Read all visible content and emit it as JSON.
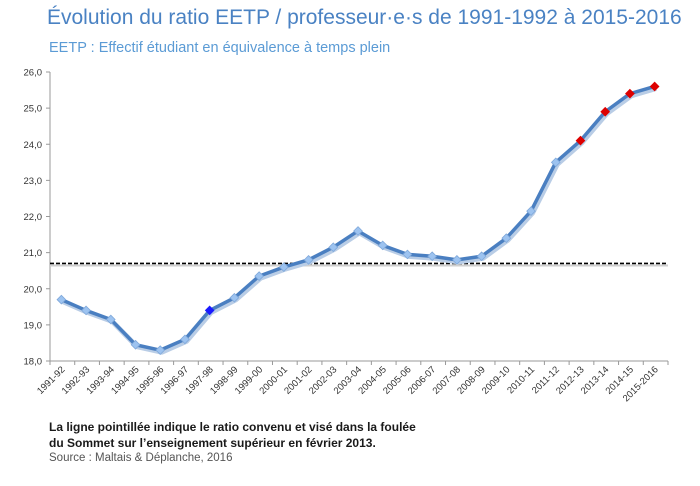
{
  "header": {
    "title": "Évolution du ratio EETP / professeur·e·s de 1991-1992 à 2015-2016",
    "subtitle": "EETP : Effectif étudiant en équivalence à temps plein"
  },
  "footer": {
    "note_line1": "La ligne pointillée indique le ratio convenu et visé dans la foulée",
    "note_line2": "du Sommet sur l’enseignement supérieur en février 2013.",
    "source": "Source : Maltais & Déplanche, 2016"
  },
  "chart_data": {
    "type": "line",
    "title": "Évolution du ratio EETP / professeur·e·s de 1991-1992 à 2015-2016",
    "xlabel": "",
    "ylabel": "",
    "ylim": [
      18.0,
      26.0
    ],
    "y_ticks": [
      "18,0",
      "19,0",
      "20,0",
      "21,0",
      "22,0",
      "23,0",
      "24,0",
      "25,0",
      "26,0"
    ],
    "grid": false,
    "categories": [
      "1991-92",
      "1992-93",
      "1993-94",
      "1994-95",
      "1995-96",
      "1996-97",
      "1997-98",
      "1998-99",
      "1999-00",
      "2000-01",
      "2001-02",
      "2002-03",
      "2003-04",
      "2004-05",
      "2005-06",
      "2006-07",
      "2007-08",
      "2008-09",
      "2009-10",
      "2010-11",
      "2011-12",
      "2012-13",
      "2013-14",
      "2014-15",
      "2015-2016"
    ],
    "series": [
      {
        "values": [
          19.7,
          19.4,
          19.15,
          18.45,
          18.3,
          18.6,
          19.4,
          19.75,
          20.35,
          20.6,
          20.8,
          21.15,
          21.6,
          21.2,
          20.95,
          20.9,
          20.8,
          20.9,
          21.4,
          22.15,
          23.5,
          24.1,
          24.9,
          25.4,
          25.6
        ],
        "line_color": "#4a7fc1",
        "marker_color": "#9dc3f0",
        "highlight_markers": {
          "6": "#1a1aff",
          "21": "#dd0000",
          "22": "#dd0000",
          "23": "#dd0000",
          "24": "#dd0000"
        }
      }
    ],
    "reference_line": {
      "value": 20.7,
      "style": "dashed",
      "color": "#000000"
    }
  }
}
